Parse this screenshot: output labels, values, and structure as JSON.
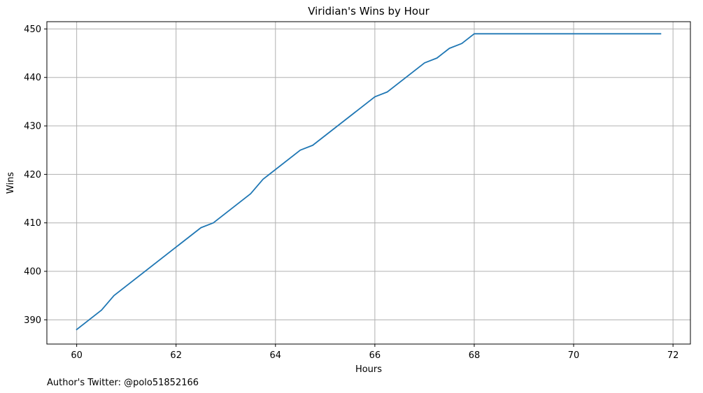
{
  "chart_data": {
    "type": "line",
    "title": "Viridian's Wins by Hour",
    "xlabel": "Hours",
    "ylabel": "Wins",
    "xlim": [
      59.4,
      72.35
    ],
    "ylim": [
      385,
      451.5
    ],
    "xticks": [
      60,
      62,
      64,
      66,
      68,
      70,
      72
    ],
    "yticks": [
      390,
      400,
      410,
      420,
      430,
      440,
      450
    ],
    "grid": true,
    "series": [
      {
        "color": "#1f77b4",
        "x": [
          60,
          60.5,
          60.75,
          62.5,
          62.75,
          63.5,
          63.75,
          64.5,
          64.75,
          66,
          66.25,
          67,
          67.25,
          67.5,
          67.75,
          68,
          71.75
        ],
        "y": [
          388,
          392,
          395,
          409,
          410,
          416,
          419,
          425,
          426,
          436,
          437,
          443,
          444,
          446,
          447,
          449,
          449
        ]
      }
    ]
  },
  "footnote": "Author's Twitter: @polo51852166",
  "colors": {
    "grid": "#b0b0b0",
    "axes": "#000000"
  }
}
